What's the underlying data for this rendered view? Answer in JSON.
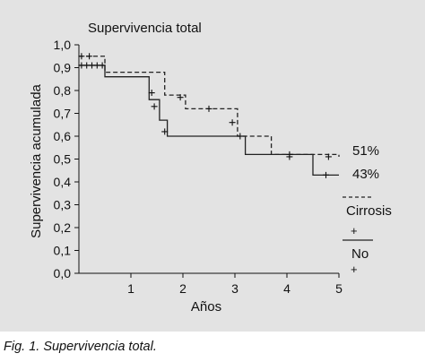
{
  "caption": "Fig. 1. Supervivencia total.",
  "chart_data": {
    "type": "line",
    "title": "Supervivencia total",
    "xlabel": "Años",
    "ylabel": "Supervivencia acumulada",
    "xlim": [
      0,
      5
    ],
    "ylim": [
      0.0,
      1.0
    ],
    "x_ticks": [
      "1",
      "2",
      "3",
      "4",
      "5"
    ],
    "y_ticks": [
      "0,0",
      "0,1",
      "0,2",
      "0,3",
      "0,4",
      "0,5",
      "0,6",
      "0,7",
      "0,8",
      "0,9",
      "1,0"
    ],
    "grid": false,
    "series": [
      {
        "name": "Cirrosis",
        "style": "dashed",
        "color": "#222222",
        "steps": [
          [
            0,
            0.95
          ],
          [
            0.5,
            0.88
          ],
          [
            1.65,
            0.78
          ],
          [
            2.05,
            0.72
          ],
          [
            3.05,
            0.6
          ],
          [
            3.7,
            0.52
          ],
          [
            5,
            0.51
          ]
        ],
        "censored": [
          [
            0.05,
            0.95
          ],
          [
            0.2,
            0.95
          ],
          [
            1.95,
            0.77
          ],
          [
            2.5,
            0.72
          ],
          [
            2.95,
            0.66
          ],
          [
            4.05,
            0.51
          ],
          [
            4.8,
            0.51
          ]
        ],
        "end_label": "51%"
      },
      {
        "name": "No",
        "style": "solid",
        "color": "#222222",
        "steps": [
          [
            0,
            0.91
          ],
          [
            0.5,
            0.86
          ],
          [
            1.35,
            0.76
          ],
          [
            1.55,
            0.67
          ],
          [
            1.7,
            0.6
          ],
          [
            3.2,
            0.52
          ],
          [
            4.5,
            0.43
          ],
          [
            5,
            0.43
          ]
        ],
        "censored": [
          [
            0.05,
            0.91
          ],
          [
            0.15,
            0.91
          ],
          [
            0.25,
            0.91
          ],
          [
            0.35,
            0.91
          ],
          [
            0.45,
            0.91
          ],
          [
            1.4,
            0.79
          ],
          [
            1.45,
            0.73
          ],
          [
            1.65,
            0.62
          ],
          [
            3.1,
            0.6
          ],
          [
            4.05,
            0.52
          ],
          [
            4.75,
            0.43
          ]
        ],
        "end_label": "43%"
      }
    ]
  }
}
